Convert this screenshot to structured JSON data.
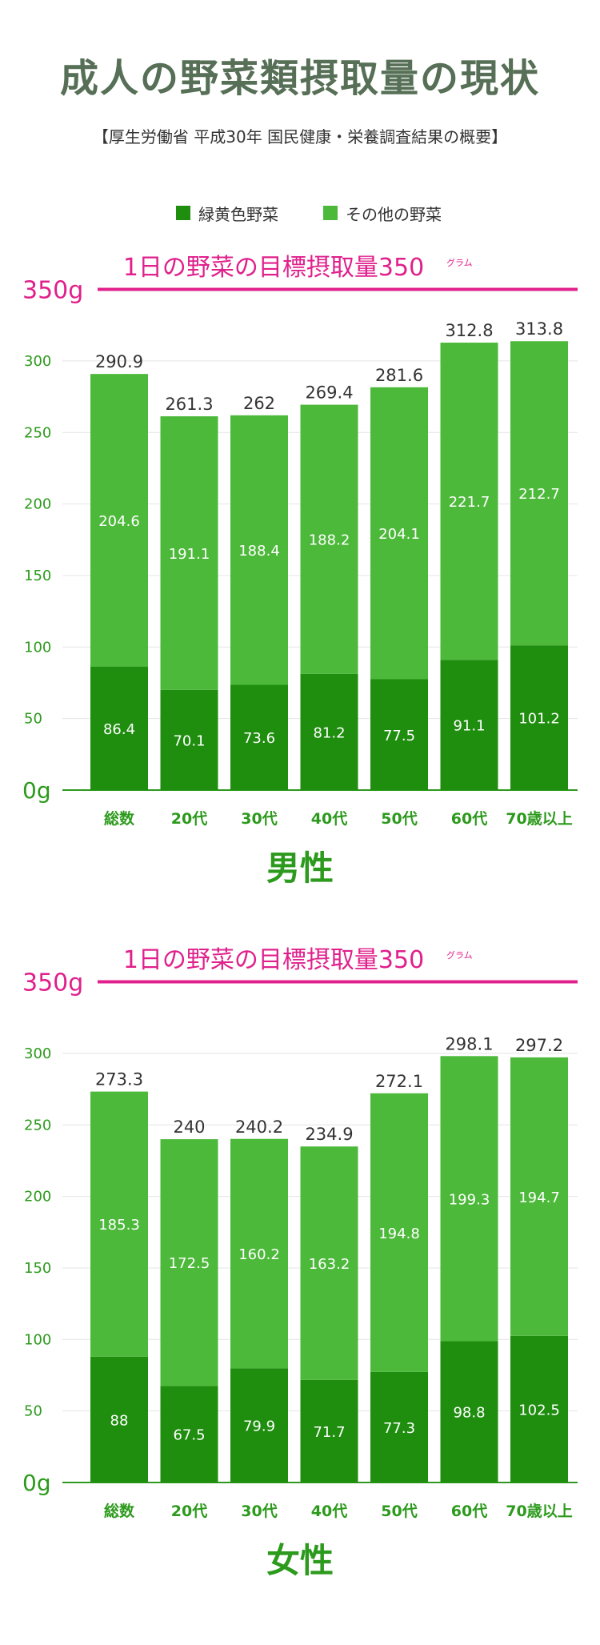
{
  "title": "成人の野菜類摂取量の現状",
  "subtitle": "【厚生労働省 平成30年 国民健康・栄養調査結果の概要】",
  "colors": {
    "green_yellow_veg": "#1f8e0f",
    "other_veg": "#4db93a",
    "target": "#e0208c",
    "axis_text": "#2c9a1c",
    "title": "#566f56"
  },
  "legend": [
    {
      "label": "緑黄色野菜",
      "color": "#1f8e0f"
    },
    {
      "label": "その他の野菜",
      "color": "#4db93a"
    }
  ],
  "chart_data": [
    {
      "type": "bar",
      "stacked": true,
      "title": "男性",
      "target_label": "1日の野菜の目標摂取量350",
      "target_unit": "グラム",
      "target_value": 350,
      "categories": [
        "総数",
        "20代",
        "30代",
        "40代",
        "50代",
        "60代",
        "70歳以上"
      ],
      "series": [
        {
          "name": "緑黄色野菜",
          "values": [
            86.4,
            70.1,
            73.6,
            81.2,
            77.5,
            91.1,
            101.2
          ]
        },
        {
          "name": "その他の野菜",
          "values": [
            204.6,
            191.1,
            188.4,
            188.2,
            204.1,
            221.7,
            212.7
          ]
        }
      ],
      "totals": [
        290.9,
        261.3,
        262,
        269.4,
        281.6,
        312.8,
        313.8
      ],
      "yticks": [
        "0g",
        "50",
        "100",
        "150",
        "200",
        "250",
        "300",
        "350g"
      ],
      "ylim": [
        0,
        350
      ],
      "grid": true
    },
    {
      "type": "bar",
      "stacked": true,
      "title": "女性",
      "target_label": "1日の野菜の目標摂取量350",
      "target_unit": "グラム",
      "target_value": 350,
      "categories": [
        "総数",
        "20代",
        "30代",
        "40代",
        "50代",
        "60代",
        "70歳以上"
      ],
      "series": [
        {
          "name": "緑黄色野菜",
          "values": [
            88,
            67.5,
            79.9,
            71.7,
            77.3,
            98.8,
            102.5
          ]
        },
        {
          "name": "その他の野菜",
          "values": [
            185.3,
            172.5,
            160.2,
            163.2,
            194.8,
            199.3,
            194.7
          ]
        }
      ],
      "totals": [
        273.3,
        240,
        240.2,
        234.9,
        272.1,
        298.1,
        297.2
      ],
      "yticks": [
        "0g",
        "50",
        "100",
        "150",
        "200",
        "250",
        "300",
        "350g"
      ],
      "ylim": [
        0,
        350
      ],
      "grid": true
    }
  ]
}
